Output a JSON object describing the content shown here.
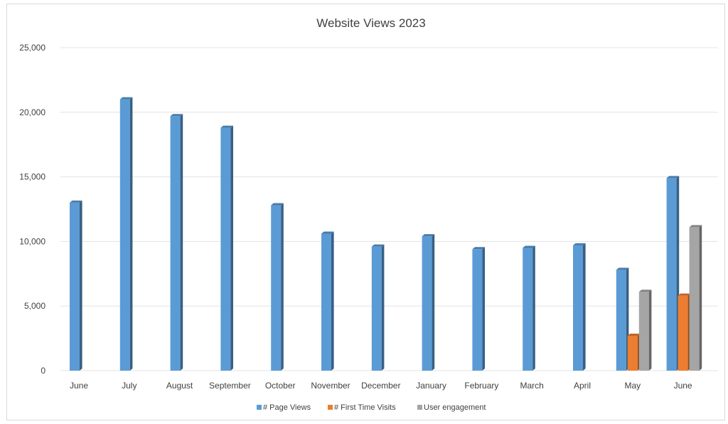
{
  "chart_data": {
    "type": "bar",
    "title": "Website Views 2023",
    "xlabel": "",
    "ylabel": "",
    "ylim": [
      0,
      25000
    ],
    "yticks": [
      0,
      5000,
      10000,
      15000,
      20000,
      25000
    ],
    "ytick_labels": [
      "0",
      "5,000",
      "10,000",
      "15,000",
      "20,000",
      "25,000"
    ],
    "grid": true,
    "legend_position": "bottom",
    "categories": [
      "June",
      "July",
      "August",
      "September",
      "October",
      "November",
      "December",
      "January",
      "February",
      "March",
      "April",
      "May",
      "June"
    ],
    "series": [
      {
        "name": "# Page Views",
        "color": "#5b9bd5",
        "values": [
          13000,
          21000,
          19700,
          18800,
          12800,
          10600,
          9600,
          10400,
          9400,
          9500,
          9700,
          7800,
          14900
        ]
      },
      {
        "name": "# First Time Visits",
        "color": "#ed7d31",
        "values": [
          null,
          null,
          null,
          null,
          null,
          null,
          null,
          null,
          null,
          null,
          null,
          2700,
          5800
        ]
      },
      {
        "name": "User engagement",
        "color": "#a5a5a5",
        "values": [
          null,
          null,
          null,
          null,
          null,
          null,
          null,
          null,
          null,
          null,
          null,
          6100,
          11100
        ]
      }
    ]
  }
}
